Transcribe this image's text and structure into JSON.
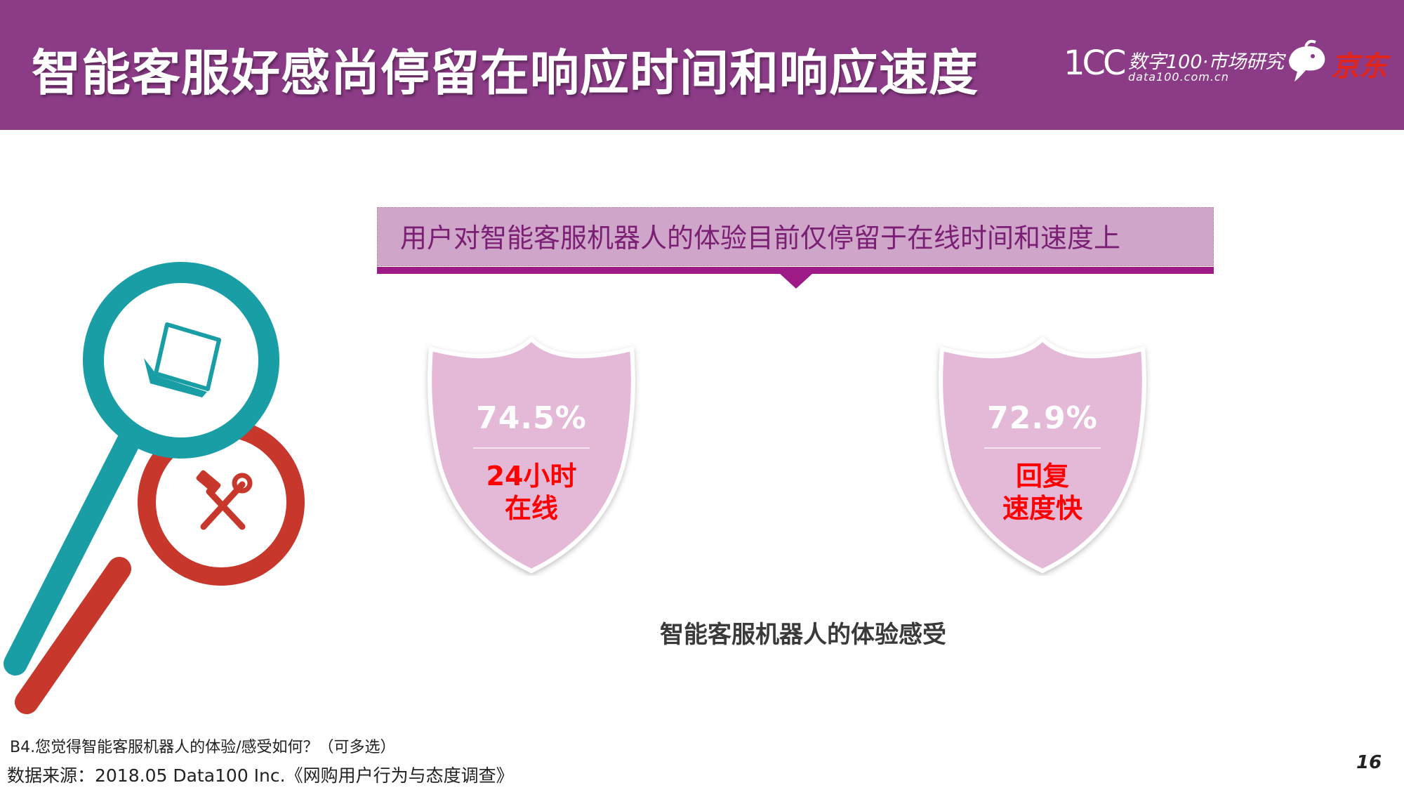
{
  "header": {
    "title": "智能客服好感尚停留在响应时间和响应速度",
    "logo_data100": {
      "mark": "1CC",
      "text": "数字100·市场研究",
      "sub": "data100.com.cn"
    },
    "logo_jd": {
      "text": "京东"
    }
  },
  "banner": {
    "text": "用户对智能客服机器人的体验目前仅停留于在线时间和速度上"
  },
  "shields": [
    {
      "percent": "74.5%",
      "label_line1": "24小时",
      "label_line2": "在线"
    },
    {
      "percent": "72.9%",
      "label_line1": "回复",
      "label_line2": "速度快"
    }
  ],
  "caption": "智能客服机器人的体验感受",
  "footer": {
    "question": "B4.您觉得智能客服机器人的体验/感受如何？（可多选）",
    "source": "数据来源：2018.05 Data100 Inc.《网购用户行为与态度调查》",
    "page_number": "16"
  },
  "icons": [
    "laptop-icon",
    "tools-icon",
    "magnifier-teal-icon",
    "magnifier-red-icon"
  ],
  "colors": {
    "header_bg": "#8c3b87",
    "banner_bg": "#cfa5c9",
    "banner_bar": "#9e1a86",
    "shield_fill": "#e4b9d7",
    "label_red": "#ff0000",
    "teal": "#1a9ea6",
    "red": "#c8372b"
  }
}
